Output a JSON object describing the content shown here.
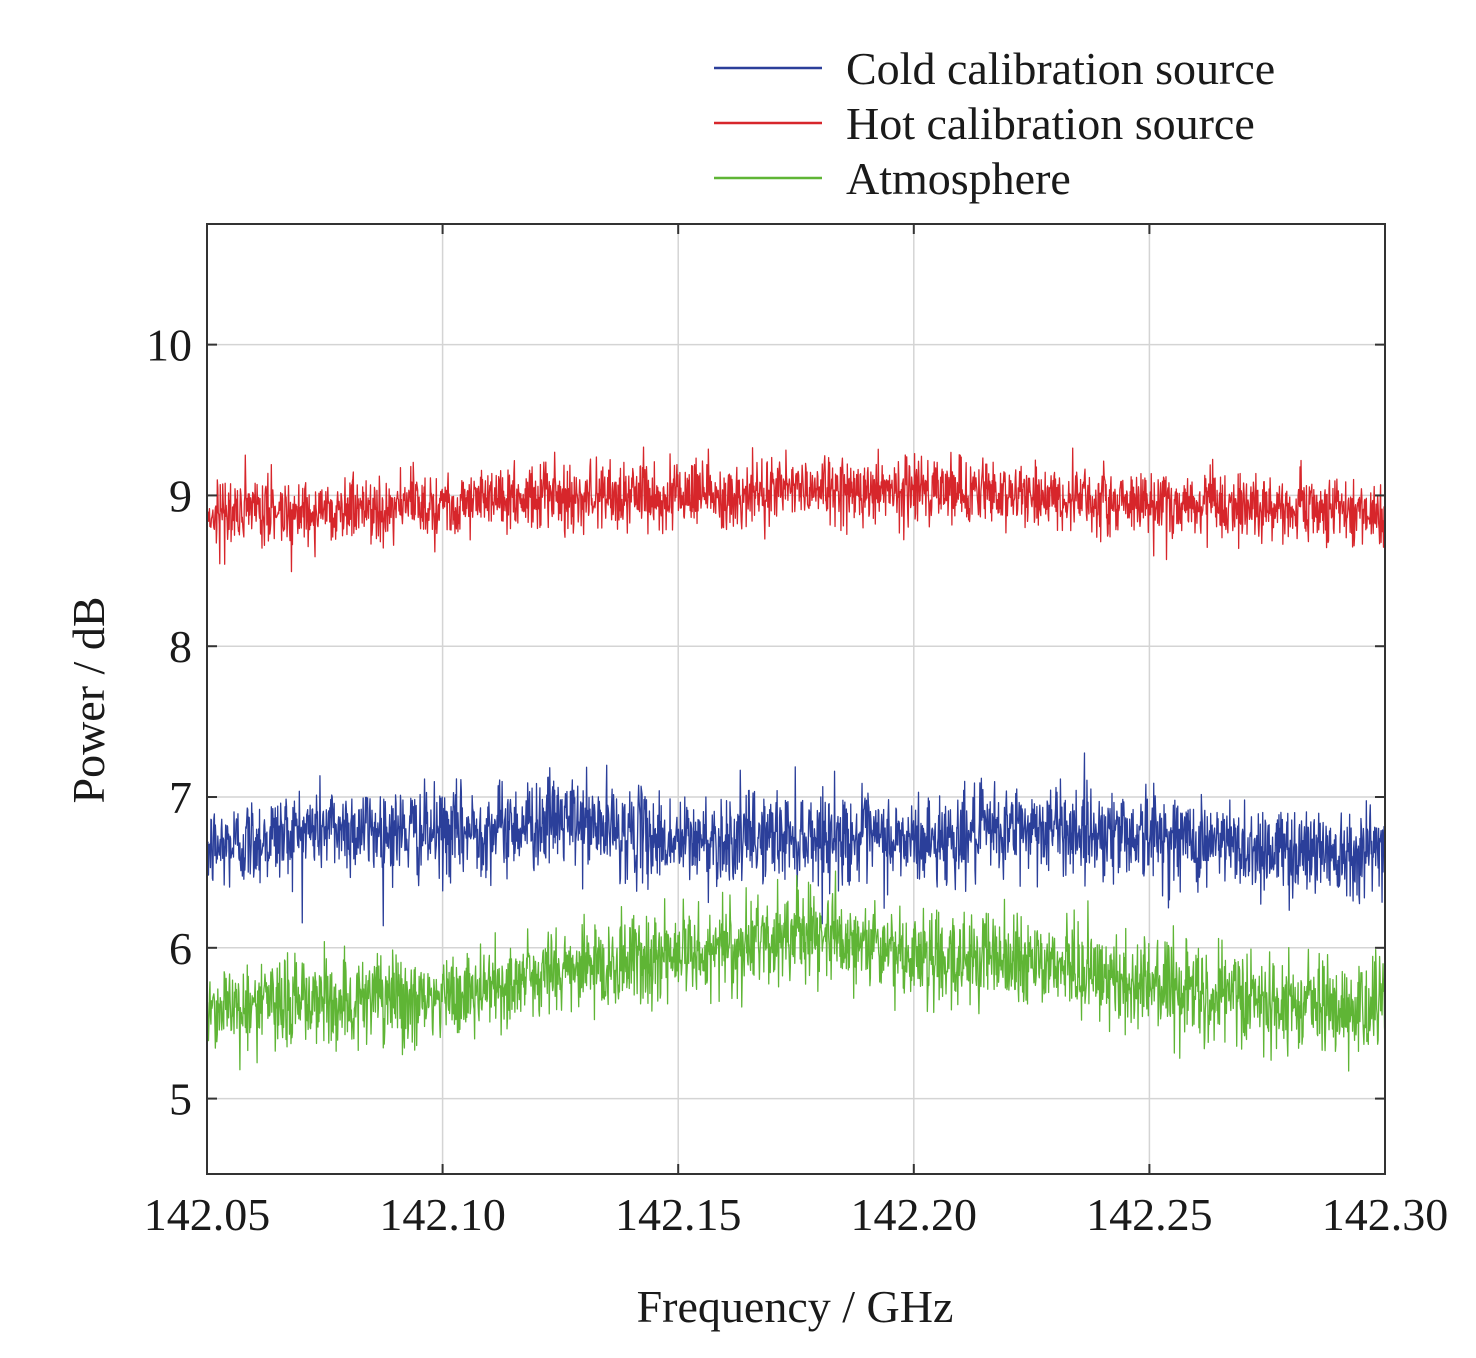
{
  "chart_data": {
    "type": "line",
    "title": "",
    "xlabel": "Frequency / GHz",
    "ylabel": "Power / dB",
    "xlim": [
      142.05,
      142.3
    ],
    "ylim": [
      4.5,
      10.8
    ],
    "xticks": [
      142.05,
      142.1,
      142.15,
      142.2,
      142.25,
      142.3
    ],
    "xtick_labels": [
      "142.05",
      "142.10",
      "142.15",
      "142.20",
      "142.25",
      "142.30"
    ],
    "yticks": [
      5,
      6,
      7,
      8,
      9,
      10
    ],
    "ytick_labels": [
      "5",
      "6",
      "7",
      "8",
      "9",
      "10"
    ],
    "grid": true,
    "legend_position": "top-right, above plot",
    "series": [
      {
        "name": "Cold calibration source",
        "color": "#2b3f9a",
        "noise_amplitude": 0.3,
        "x": [
          142.05,
          142.075,
          142.1,
          142.125,
          142.15,
          142.175,
          142.2,
          142.225,
          142.25,
          142.275,
          142.3
        ],
        "values": [
          6.65,
          6.8,
          6.75,
          6.85,
          6.7,
          6.75,
          6.7,
          6.8,
          6.75,
          6.65,
          6.65
        ]
      },
      {
        "name": "Hot calibration source",
        "color": "#d7262b",
        "noise_amplitude": 0.22,
        "x": [
          142.05,
          142.075,
          142.1,
          142.125,
          142.15,
          142.175,
          142.2,
          142.225,
          142.25,
          142.275,
          142.3
        ],
        "values": [
          8.88,
          8.9,
          8.95,
          9.0,
          9.0,
          9.05,
          9.05,
          9.0,
          8.95,
          8.92,
          8.88
        ]
      },
      {
        "name": "Atmosphere",
        "color": "#5fb535",
        "noise_amplitude": 0.3,
        "x": [
          142.05,
          142.075,
          142.1,
          142.125,
          142.15,
          142.175,
          142.2,
          142.225,
          142.25,
          142.275,
          142.3
        ],
        "values": [
          5.6,
          5.65,
          5.65,
          5.85,
          5.95,
          6.1,
          5.95,
          5.9,
          5.75,
          5.65,
          5.6
        ]
      }
    ]
  }
}
